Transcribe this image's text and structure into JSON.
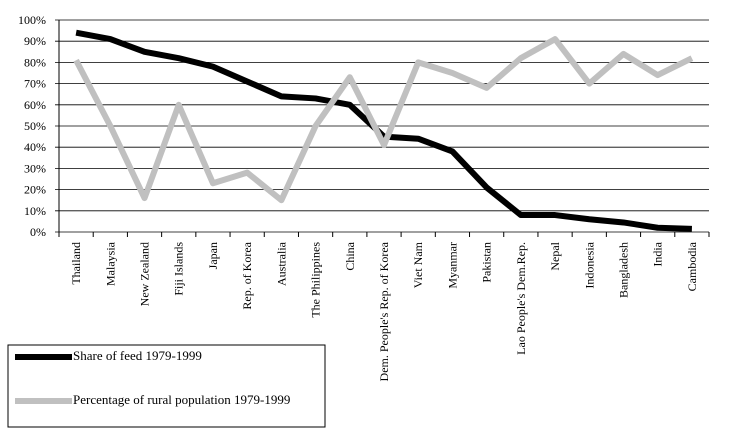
{
  "chart_data": {
    "type": "line",
    "categories": [
      "Thailand",
      "Malaysia",
      "New Zealand",
      "Fiji Islands",
      "Japan",
      "Rep. of Korea",
      "Australia",
      "The Philippines",
      "China",
      "Dem. People's Rep. of Korea",
      "Viet Nam",
      "Myanmar",
      "Pakistan",
      "Lao People's Dem.Rep.",
      "Nepal",
      "Indonesia",
      "Bangladesh",
      "India",
      "Cambodia"
    ],
    "series": [
      {
        "name": "Share of feed 1979-1999",
        "color": "#000000",
        "values": [
          94,
          91,
          85,
          82,
          78,
          71,
          64,
          63,
          60,
          45,
          44,
          38,
          21,
          8,
          8,
          6,
          4.5,
          2,
          1.5
        ]
      },
      {
        "name": "Percentage of rural population 1979-1999",
        "color": "#c0c0c0",
        "values": [
          81,
          50,
          16,
          60,
          23,
          28,
          15,
          50,
          73,
          41,
          80,
          75,
          68,
          82,
          91,
          70,
          84,
          74,
          82
        ]
      }
    ],
    "ylim": [
      0,
      100
    ],
    "yticks": [
      {
        "value": 0,
        "label": "0%"
      },
      {
        "value": 10,
        "label": "10%"
      },
      {
        "value": 20,
        "label": "20%"
      },
      {
        "value": 30,
        "label": "30%"
      },
      {
        "value": 40,
        "label": "40%"
      },
      {
        "value": 50,
        "label": "50%"
      },
      {
        "value": 60,
        "label": "60%"
      },
      {
        "value": 70,
        "label": "70%"
      },
      {
        "value": 80,
        "label": "80%"
      },
      {
        "value": 90,
        "label": "90%"
      },
      {
        "value": 100,
        "label": "100%"
      }
    ],
    "grid": true
  }
}
